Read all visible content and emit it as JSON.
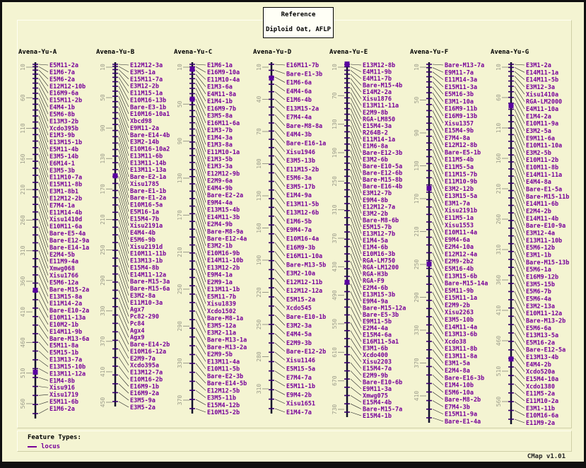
{
  "header": {
    "title": "Reference",
    "subtitle": "Diploid Oat, AFLP"
  },
  "legend": {
    "title": "Feature Types:",
    "items": [
      {
        "label": "locus"
      }
    ]
  },
  "footer": {
    "version": "CMap v1.01"
  },
  "colors": {
    "background": "#f4f4d2",
    "locus_label": "#770099",
    "map_line": "#10102a",
    "locus_tick": "#3a0070",
    "square_marker": "#5a00a0",
    "ruler": "#9a9a88",
    "leader": "#222222"
  },
  "maps": [
    {
      "name": "Avena-Yu-A",
      "ruler_ticks": [
        10,
        60,
        110,
        160,
        210,
        260,
        310,
        360,
        410,
        460,
        510,
        560
      ],
      "loci": [
        "E5M11-2a",
        "E1M6-7a",
        "E5M6-2a",
        "E12M12-10b",
        "E16M9-6a",
        "E15M11-2b",
        "E4M4-1b",
        "E5M6-8b",
        "E13M3-2b",
        "Xcdo395b",
        "E1M3-9b",
        "E13M15-1b",
        "E5M11-4b",
        "E3M5-14b",
        "E6M14-1",
        "E3M5-3b",
        "E11M10-7a",
        "E15M11-8b",
        "E3M1-8b1",
        "E12M12-2b",
        "E7M4-1a",
        "E11M14-4b",
        "Xisu1410d",
        "E10M11-6a",
        "Bare-E5-4a",
        "Bare-E12-9a",
        "Bare-E14-1a",
        "E2M4-5b",
        "E11M9-4a",
        "Xmwg068",
        "Xisu1766",
        "E5M6-12a",
        "Bare-M15-2a",
        "E13M15-8a",
        "E11M14-2a",
        "Bare-E10-2a",
        "E10M11-13a",
        "E10M2-1b",
        "E14M11-9b",
        "Bare-M13-6a",
        "E5M11-8a",
        "E5M15-1b",
        "E13M13-7a",
        "E13M15-10b",
        "E13M11-12a",
        "E1M4-8b",
        "Xisu916",
        "Xisu1719",
        "E5M11-6b",
        "E1M6-2a"
      ]
    },
    {
      "name": "Avena-Yu-B",
      "ruler_ticks": [
        10,
        50,
        90,
        130,
        170,
        210,
        250,
        290,
        330,
        370,
        410,
        450
      ],
      "loci": [
        "E12M12-3a",
        "E3M5-1a",
        "E15M11-7a",
        "E3M12-2b",
        "E11M15-1a",
        "E10M16-13b",
        "Bare-E3-1b",
        "E10M16-10a1",
        "Xbcd98",
        "E9M11-2a",
        "Bare-E14-4b",
        "E3M2-14b",
        "E10M16-10a2",
        "E13M11-6b",
        "E13M11-14b",
        "E13M11-13a",
        "Bare-E2-1a",
        "Xisu1785",
        "Bare-E1-1b",
        "Bare-E1-2a",
        "E10M16-5a",
        "E5M16-1a",
        "E15M4-7b",
        "Xisu2191a",
        "E4M4-4b",
        "E5M6-9b",
        "Xisu2191d",
        "E10M11-11b",
        "E13M13-1b",
        "E15M4-8b",
        "E14M11-12a",
        "Bare-M15-3a",
        "Bare-M15-6a",
        "E3M2-8a",
        "E11M10-3a",
        "Agx7",
        "Pc82-290",
        "Pc84",
        "Agx4",
        "Agx9",
        "Bare-E14-2b",
        "E10M16-12a",
        "E2M9-7a",
        "Xcdo395a",
        "E13M12-7a",
        "E10M16-2b",
        "E16M9-1b",
        "E16M9-2a",
        "E3M5-9a",
        "E3M5-2a"
      ]
    },
    {
      "name": "Avena-Yu-C",
      "ruler_ticks": [
        10,
        50,
        90,
        130,
        170,
        210,
        250,
        290,
        330,
        370
      ],
      "loci": [
        "E1M6-1a",
        "E16M9-10a",
        "E11M10-4a",
        "E1M3-6a",
        "E4M11-8a",
        "E1M4-1b",
        "E16M9-7b",
        "E3M5-8a",
        "E16M11-6a",
        "E1M3-7b",
        "E1M4-3a",
        "E1M3-8a",
        "E11M10-1a",
        "E1M3-5b",
        "E1M3-3a",
        "E12M12-9b",
        "E2M9-6a",
        "E4M4-9b",
        "Bare-E2-2a",
        "E9M4-4a",
        "E13M15-4b",
        "E14M11-3b",
        "E2M4-9b",
        "Bare-M8-9a",
        "Bare-E12-4a",
        "E3M2-1b",
        "E10M16-9b",
        "E14M11-10b",
        "E13M12-2b",
        "E9M4-1a",
        "E2M9-1a",
        "E13M11-1b",
        "E5M11-7b",
        "Xisu1839",
        "Xcdo1502",
        "Bare-M8-1a",
        "E3M5-12a",
        "E3M2-11a",
        "Bare-M13-1a",
        "Bare-M13-2a",
        "E2M9-5b",
        "E13M11-4a",
        "E10M11-5b",
        "Bare-E2-3b",
        "Bare-E14-5b",
        "E12M12-5b",
        "E3M5-11b",
        "E15M4-12b",
        "E10M15-2b"
      ]
    },
    {
      "name": "Avena-Yu-D",
      "ruler_ticks": [
        10,
        40,
        70,
        100,
        130,
        160,
        190,
        220,
        250,
        280,
        310
      ],
      "loci": [
        "E16M11-7b",
        "Bare-E1-3b",
        "E1M6-6a",
        "E4M4-6a",
        "E1M6-4b",
        "E13M15-2a",
        "E7M4-4a",
        "Bare-M8-8a",
        "E4M4-3b",
        "Bare-E16-1a",
        "Xisu1946",
        "E3M5-13b",
        "E11M15-2b",
        "E5M6-3a",
        "E3M5-17b",
        "E1M4-9a",
        "E13M11-5b",
        "E13M12-6b",
        "E1M6-5b",
        "E9M4-7a",
        "E10M16-4a",
        "E16M9-3b",
        "E16M11-10a",
        "Bare-M13-5b",
        "E3M2-10a",
        "E12M12-11b",
        "E12M12-12a",
        "E5M15-2a",
        "Xcdo545",
        "Bare-E10-1b",
        "E3M2-3a",
        "E4M4-5a",
        "E2M9-3b",
        "Bare-E12-2b",
        "Xisu1146",
        "E5M15-5a",
        "E7M4-7a",
        "E5M11-1b",
        "E9M4-2b",
        "Xisu1651",
        "E1M4-7a"
      ]
    },
    {
      "name": "Avena-Yu-E",
      "ruler_ticks": [
        10,
        70,
        130,
        190,
        250,
        310,
        370,
        430,
        490,
        550,
        610,
        670,
        730
      ],
      "loci": [
        "E13M12-8b",
        "E4M11-9b",
        "E4M11-7b",
        "Bare-M15-4b",
        "E14M2-2a",
        "Xisu1876",
        "E13M11-11a",
        "E2M9-8b",
        "RGA-LM850",
        "E15M4-3a",
        "R264B-2",
        "E11M14-1a",
        "E1M6-8a",
        "Bare-E12-3b",
        "E3M2-6b",
        "Bare-E10-5a",
        "Bare-E12-6b",
        "Bare-M15-8b",
        "Bare-E16-4b",
        "E3M12-7b",
        "E9M4-8b",
        "E12M12-7a",
        "E3M2-2b",
        "Bare-M8-6b",
        "E5M15-7b",
        "E13M12-7b",
        "E1M4-5a",
        "E1M4-6b",
        "E10M16-3b",
        "RGA-LM750",
        "RGA-LM1200",
        "RGA-H3b",
        "RGA-F9",
        "E2M4-6b",
        "E13M15-3b",
        "E9M4-9a",
        "Bare-M15-12a",
        "Bare-E5-3b",
        "E9M11-5b",
        "E2M4-4a",
        "E15M4-6a",
        "E16M11-5a1",
        "E3M1-6b",
        "Xcdo400",
        "Xisu2203",
        "E15M4-7a",
        "E2M9-9b",
        "Bare-E10-6b",
        "E9M11-3a",
        "Xmwg075",
        "E15M4-4b",
        "Bare-M15-7a",
        "E15M4-1b"
      ]
    },
    {
      "name": "Avena-Yu-F",
      "ruler_ticks": [
        10,
        50,
        90,
        130,
        170,
        210,
        250,
        290,
        330,
        370,
        410
      ],
      "loci": [
        "Bare-M13-7a",
        "E9M11-7a",
        "E11M14-3a",
        "E15M11-3a",
        "E5M16-3b",
        "E3M1-10a",
        "E16M9-11b",
        "E16M9-13b",
        "Xisu1357",
        "E15M4-9b",
        "E7M4-8a",
        "E12M12-8b",
        "Bare-E5-1b",
        "E11M5-4b",
        "E11M5-5a",
        "E11M15-7b",
        "E11M10-9b",
        "E3M2-12b",
        "E13M15-5a",
        "E3M1-7a",
        "Xisu2191b",
        "E11M5-1a",
        "Xisu1553",
        "E10M11-4a",
        "E9M4-6a",
        "E2M4-10a",
        "E12M12-4a",
        "E2M9-2b2",
        "E5M16-4b",
        "E13M15-6b",
        "Bare-M15-14a",
        "E5M11-9b",
        "E15M11-1a",
        "E2M9-2b",
        "Xisu2263",
        "E3M5-10b",
        "E14M11-4a",
        "E13M13-6b",
        "Xcdo38",
        "E13M11-8b",
        "E13M11-8a",
        "E3M1-5a",
        "E2M4-8a",
        "Bare-E16-3b",
        "E1M4-10b",
        "E5M6-10a",
        "Bare-M8-2b",
        "E7M4-3b",
        "E15M11-9a",
        "Bare-E1-4a"
      ]
    },
    {
      "name": "Avena-Yu-G",
      "ruler_ticks": [
        10,
        60,
        110,
        160,
        210,
        260,
        310,
        360,
        410,
        460,
        510,
        560
      ],
      "loci": [
        "E3M1-2a",
        "E14M11-1a",
        "E14M11-5b",
        "E3M12-3a",
        "Xisu1410a",
        "RGA-LM2000",
        "E4M11-10a",
        "E1M4-2a",
        "E10M11-9a",
        "E3M2-5a",
        "E9M11-6a",
        "E10M11-10a",
        "E3M2-5b",
        "E10M11-2b",
        "E10M11-8b",
        "E14M11-11a",
        "E4M4-8a",
        "Bare-E1-5a",
        "Bare-M15-11b",
        "E14M11-6b",
        "E2M4-2b",
        "E14M11-4b",
        "Bare-E10-9a",
        "E3M12-4a",
        "E13M11-10b",
        "E5M6-12b",
        "E3M1-1b",
        "Bare-M15-13b",
        "E5M6-1a",
        "E16M9-12b",
        "E3M5-15b",
        "E5M6-7b",
        "E5M6-4a",
        "E3M2-13a",
        "E10M11-12a",
        "Bare-M13-2b",
        "E5M6-6a",
        "E13M13-5a",
        "E5M16-2a",
        "Bare-E12-5a",
        "E13M13-4b",
        "E4M4-2b",
        "Xcdo520a",
        "E15M4-10a",
        "Xcdo1380",
        "E11M5-2a",
        "E11M10-2a",
        "E3M1-11b",
        "E10M16-6a",
        "E11M9-2a"
      ]
    }
  ]
}
